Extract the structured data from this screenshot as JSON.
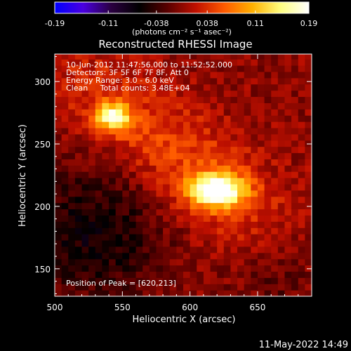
{
  "chart_data": {
    "type": "heatmap",
    "title": "Reconstructed RHESSI Image",
    "xlabel": "Heliocentric X (arcsec)",
    "ylabel": "Heliocentric Y (arcsec)",
    "xlim": [
      500,
      690
    ],
    "ylim": [
      128,
      322
    ],
    "x_ticks": [
      "500",
      "550",
      "600",
      "650"
    ],
    "x_tick_values": [
      500,
      550,
      600,
      650
    ],
    "y_ticks": [
      "150",
      "200",
      "250",
      "300"
    ],
    "y_tick_values": [
      150,
      200,
      250,
      300
    ],
    "colorbar": {
      "unit_label": "(photons cm⁻² s⁻¹ asec⁻²)",
      "min": -0.19,
      "max": 0.19,
      "tick_labels": [
        "-0.19",
        "-0.11",
        "-0.038",
        "0.038",
        "0.11",
        "0.19"
      ],
      "tick_values": [
        -0.19,
        -0.11,
        -0.038,
        0.038,
        0.11,
        0.19
      ],
      "colormap": [
        "#0000ff",
        "#4a00e0",
        "#2a0040",
        "#000000",
        "#5a0000",
        "#c01000",
        "#ff5a00",
        "#ffb000",
        "#ffff80",
        "#ffffff"
      ]
    },
    "info_lines": [
      "10-Jun-2012 11:47:56.000 to 11:52:52.000",
      "Detectors: 3F 5F 6F 7F 8F, Att 0",
      "Energy Range: 3.0 - 6.0 keV",
      "Clean     Total counts: 3.48E+04"
    ],
    "peak_label": "Position of Peak = [620,213]",
    "sources": [
      {
        "x": 620,
        "y": 213,
        "peak": 0.19,
        "sx": 14,
        "sy": 9
      },
      {
        "x": 543,
        "y": 272,
        "peak": 0.15,
        "sx": 9,
        "sy": 8
      }
    ]
  },
  "timestamp": "11-May-2022 14:49"
}
